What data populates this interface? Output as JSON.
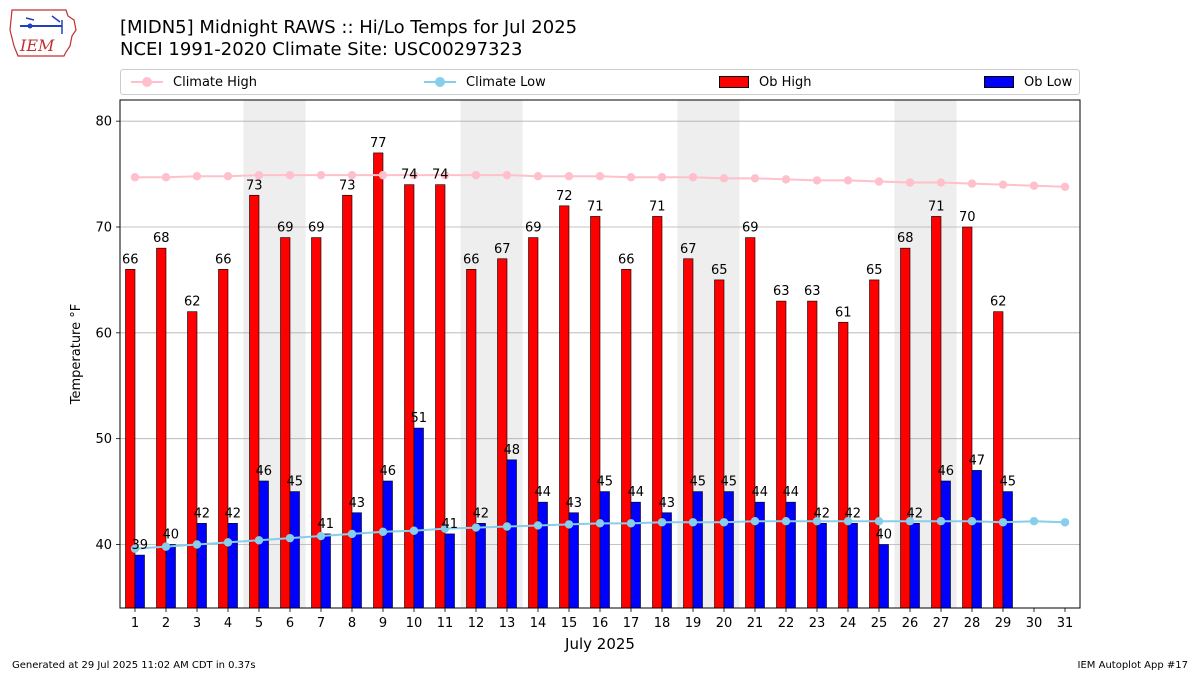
{
  "header": {
    "title": "[MIDN5] Midnight RAWS :: Hi/Lo Temps for Jul 2025",
    "subtitle": "NCEI 1991-2020 Climate Site: USC00297323",
    "logo_text": "IEM"
  },
  "footer": {
    "generated": "Generated at 29 Jul 2025 11:02 AM CDT in 0.37s",
    "app": "IEM Autoplot App #17"
  },
  "legend": {
    "climate_high": "Climate High",
    "climate_low": "Climate Low",
    "ob_high": "Ob High",
    "ob_low": "Ob Low"
  },
  "colors": {
    "ob_high": "#ff0000",
    "ob_low": "#0000ff",
    "climate_high": "#ffc0cb",
    "climate_low": "#87ceeb",
    "weekend_shade": "#eeeeee",
    "grid": "#b0b0b0"
  },
  "chart_data": {
    "type": "bar",
    "xlabel": "July 2025",
    "ylabel": "Temperature °F",
    "ylim": [
      34,
      82
    ],
    "yticks": [
      40,
      50,
      60,
      70,
      80
    ],
    "grid": "horizontal",
    "legend_placement": "top",
    "categories": [
      "1",
      "2",
      "3",
      "4",
      "5",
      "6",
      "7",
      "8",
      "9",
      "10",
      "11",
      "12",
      "13",
      "14",
      "15",
      "16",
      "17",
      "18",
      "19",
      "20",
      "21",
      "22",
      "23",
      "24",
      "25",
      "26",
      "27",
      "28",
      "29",
      "30",
      "31"
    ],
    "weekend_days": [
      5,
      6,
      12,
      13,
      19,
      20,
      26,
      27
    ],
    "series": [
      {
        "name": "Ob High",
        "kind": "bar",
        "values": [
          66,
          68,
          62,
          66,
          73,
          69,
          69,
          73,
          77,
          74,
          74,
          66,
          67,
          69,
          72,
          71,
          66,
          71,
          67,
          65,
          69,
          63,
          63,
          61,
          65,
          68,
          71,
          70,
          62,
          null,
          null
        ]
      },
      {
        "name": "Ob Low",
        "kind": "bar",
        "values": [
          39,
          40,
          42,
          42,
          46,
          45,
          41,
          43,
          46,
          51,
          41,
          42,
          48,
          44,
          43,
          45,
          44,
          43,
          45,
          45,
          44,
          44,
          42,
          42,
          40,
          42,
          46,
          47,
          45,
          null,
          null
        ]
      },
      {
        "name": "Climate High",
        "kind": "line",
        "values": [
          74.7,
          74.7,
          74.8,
          74.8,
          74.9,
          74.9,
          74.9,
          74.9,
          74.9,
          74.9,
          74.9,
          74.9,
          74.9,
          74.8,
          74.8,
          74.8,
          74.7,
          74.7,
          74.7,
          74.6,
          74.6,
          74.5,
          74.4,
          74.4,
          74.3,
          74.2,
          74.2,
          74.1,
          74.0,
          73.9,
          73.8
        ]
      },
      {
        "name": "Climate Low",
        "kind": "line",
        "values": [
          39.6,
          39.8,
          40.0,
          40.2,
          40.4,
          40.6,
          40.8,
          41.0,
          41.2,
          41.3,
          41.5,
          41.6,
          41.7,
          41.8,
          41.9,
          42.0,
          42.0,
          42.1,
          42.1,
          42.1,
          42.2,
          42.2,
          42.2,
          42.2,
          42.2,
          42.2,
          42.2,
          42.2,
          42.1,
          42.2,
          42.1
        ]
      }
    ]
  }
}
